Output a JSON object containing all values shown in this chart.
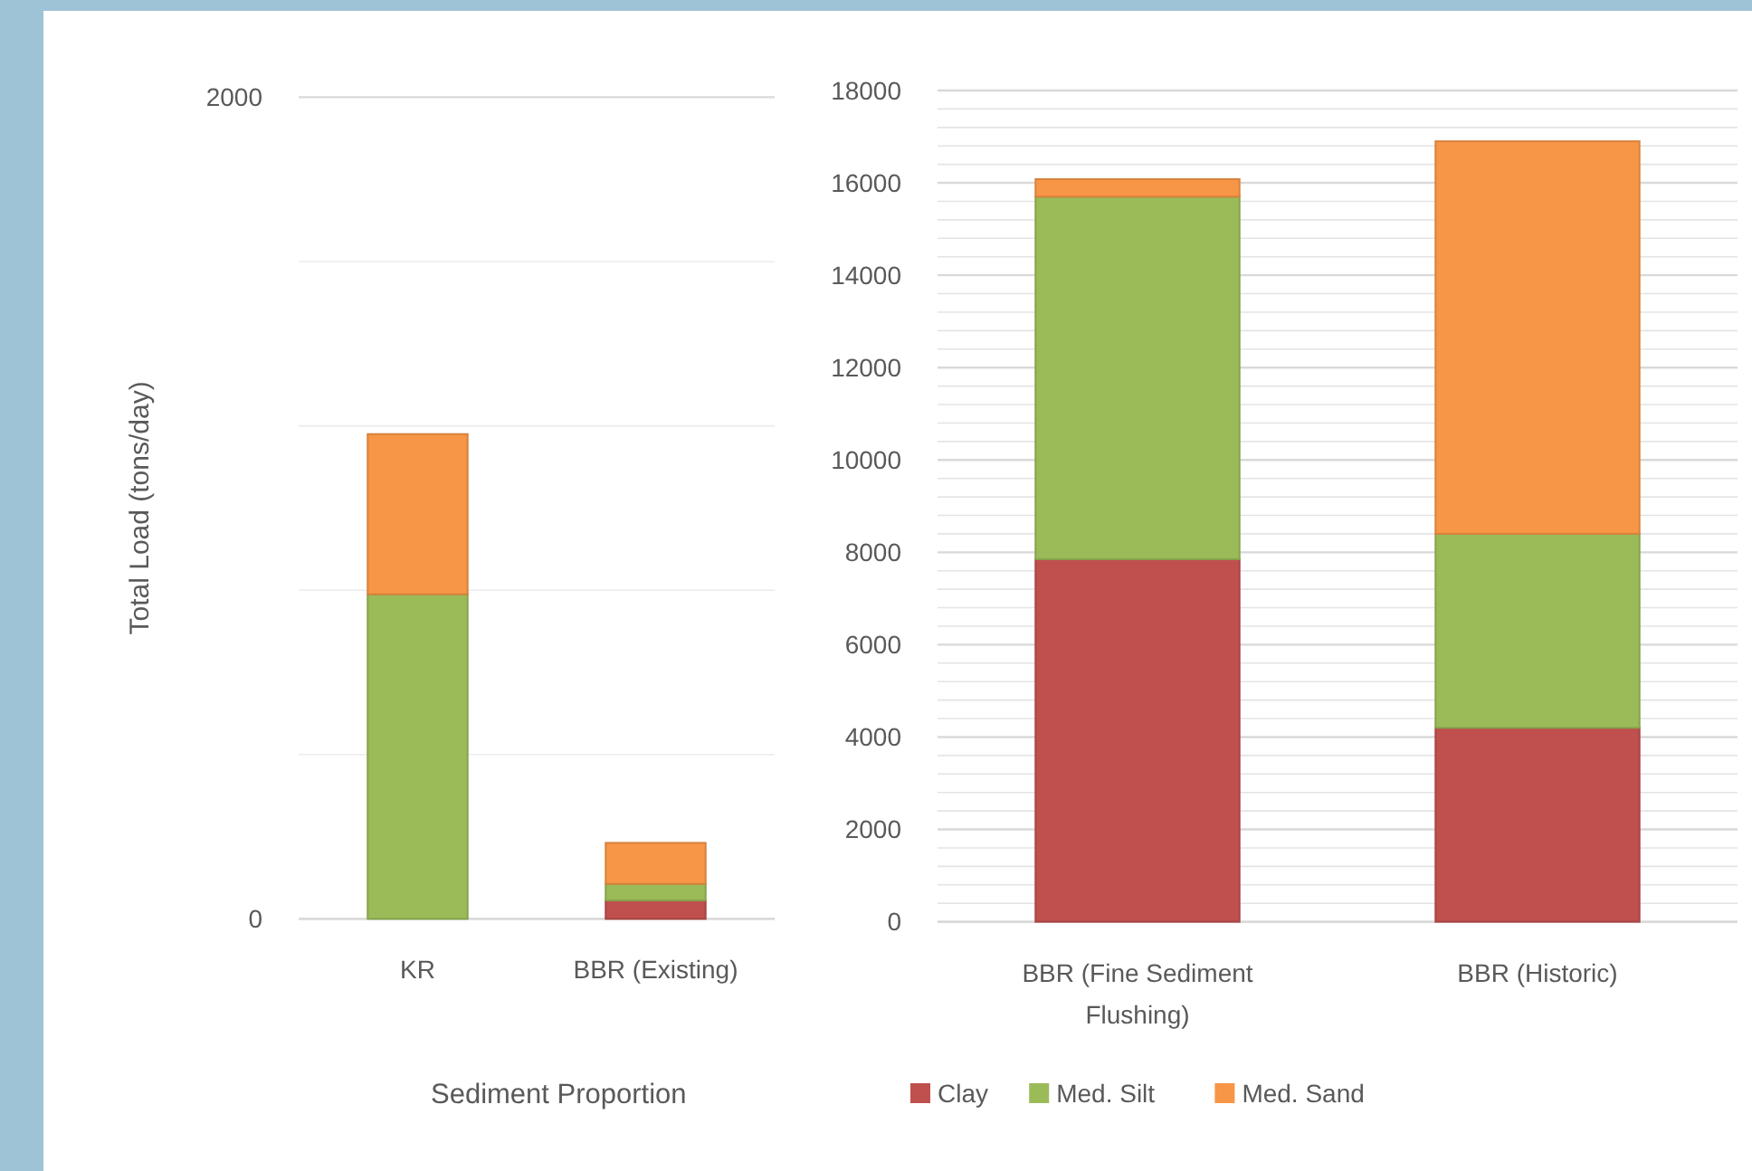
{
  "chart_data": [
    {
      "type": "bar",
      "stacked": true,
      "ylabel": "Total Load (tons/day)",
      "categories": [
        "KR",
        "BBR (Existing)"
      ],
      "ylim": [
        0,
        2000
      ],
      "yticks": [
        0,
        {
          "value": 400,
          "label": null
        },
        {
          "value": 800,
          "label": null
        },
        {
          "value": 1200,
          "label": null
        },
        {
          "value": 1600,
          "label": null
        },
        2000
      ],
      "grid": "y",
      "series": [
        {
          "color": "#c0504d",
          "values": [
            0,
            45
          ]
        },
        {
          "color": "#9bbb59",
          "values": [
            790,
            40
          ]
        },
        {
          "color": "#f79646",
          "values": [
            390,
            100
          ]
        }
      ]
    },
    {
      "type": "bar",
      "stacked": true,
      "categories": [
        "BBR (Fine Sediment Flushing)",
        "BBR (Historic)"
      ],
      "ylim": [
        0,
        18000
      ],
      "yticks": [
        0,
        {
          "value": 400,
          "label": null
        },
        {
          "value": 800,
          "label": null
        },
        {
          "value": 1200,
          "label": null
        },
        {
          "value": 1600,
          "label": null
        },
        2000,
        {
          "value": 2400,
          "label": null
        },
        {
          "value": 2800,
          "label": null
        },
        {
          "value": 3200,
          "label": null
        },
        {
          "value": 3600,
          "label": null
        },
        4000,
        {
          "value": 4400,
          "label": null
        },
        {
          "value": 4800,
          "label": null
        },
        {
          "value": 5200,
          "label": null
        },
        {
          "value": 5600,
          "label": null
        },
        6000,
        {
          "value": 6400,
          "label": null
        },
        {
          "value": 6800,
          "label": null
        },
        {
          "value": 7200,
          "label": null
        },
        {
          "value": 7600,
          "label": null
        },
        8000,
        {
          "value": 8400,
          "label": null
        },
        {
          "value": 8800,
          "label": null
        },
        {
          "value": 9200,
          "label": null
        },
        {
          "value": 9600,
          "label": null
        },
        10000,
        {
          "value": 10400,
          "label": null
        },
        {
          "value": 10800,
          "label": null
        },
        {
          "value": 11200,
          "label": null
        },
        {
          "value": 11600,
          "label": null
        },
        12000,
        {
          "value": 12400,
          "label": null
        },
        {
          "value": 12800,
          "label": null
        },
        {
          "value": 13200,
          "label": null
        },
        {
          "value": 13600,
          "label": null
        },
        14000,
        {
          "value": 14400,
          "label": null
        },
        {
          "value": 14800,
          "label": null
        },
        {
          "value": 15200,
          "label": null
        },
        {
          "value": 15600,
          "label": null
        },
        16000,
        {
          "value": 16400,
          "label": null
        },
        {
          "value": 16800,
          "label": null
        },
        {
          "value": 17200,
          "label": null
        },
        {
          "value": 17600,
          "label": null
        },
        18000
      ],
      "grid": "y",
      "legend": "bottom",
      "legend_title": "Sediment Proportion",
      "series": [
        {
          "name": "Clay",
          "color": "#c0504d",
          "values": [
            7850,
            4200
          ]
        },
        {
          "name": "Med. Silt",
          "color": "#9bbb59",
          "values": [
            7850,
            4200
          ]
        },
        {
          "name": "Med. Sand",
          "color": "#f79646",
          "values": [
            380,
            8500
          ]
        }
      ]
    }
  ]
}
